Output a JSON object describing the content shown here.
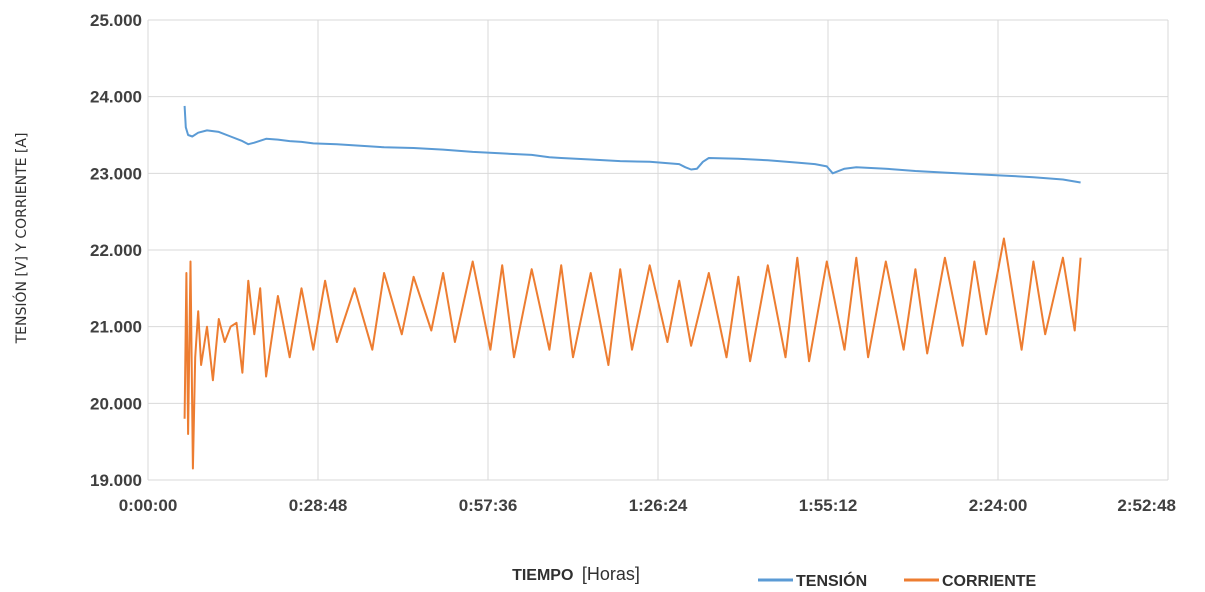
{
  "chart_data": {
    "type": "line",
    "title": "",
    "ylabel": "TENSIÓN [V] Y CORRIENTE [A]",
    "xlabel_bold": "TIEMPO",
    "xlabel_unit": "[Horas]",
    "ylim": [
      19,
      25
    ],
    "y_ticks": [
      "19.000",
      "20.000",
      "21.000",
      "22.000",
      "23.000",
      "24.000",
      "25.000"
    ],
    "xlim_minutes": [
      0,
      172.8
    ],
    "x_ticks": [
      "0:00:00",
      "0:28:48",
      "0:57:36",
      "1:26:24",
      "1:55:12",
      "2:24:00",
      "2:52:48"
    ],
    "grid": true,
    "legend_position": "bottom-right",
    "series": [
      {
        "name": "TENSIÓN",
        "color": "#5B9BD5",
        "x_minutes": [
          6.2,
          6.4,
          6.8,
          7.5,
          8.5,
          10,
          12,
          14,
          16,
          17,
          18,
          20,
          22,
          24,
          26,
          28,
          32,
          36,
          40,
          45,
          50,
          55,
          60,
          65,
          68,
          70,
          75,
          80,
          85,
          90,
          91,
          92,
          93,
          94,
          95,
          100,
          105,
          110,
          113,
          115,
          116,
          118,
          120,
          125,
          130,
          135,
          140,
          145,
          150,
          155,
          158
        ],
        "values": [
          23.88,
          23.6,
          23.5,
          23.48,
          23.53,
          23.56,
          23.54,
          23.48,
          23.42,
          23.38,
          23.4,
          23.45,
          23.44,
          23.42,
          23.41,
          23.39,
          23.38,
          23.36,
          23.34,
          23.33,
          23.31,
          23.28,
          23.26,
          23.24,
          23.21,
          23.2,
          23.18,
          23.16,
          23.15,
          23.12,
          23.08,
          23.05,
          23.06,
          23.15,
          23.2,
          23.19,
          23.17,
          23.14,
          23.12,
          23.09,
          23.0,
          23.06,
          23.08,
          23.06,
          23.03,
          23.01,
          22.99,
          22.97,
          22.95,
          22.92,
          22.88
        ]
      },
      {
        "name": "CORRIENTE",
        "color": "#ED7D31",
        "x_minutes": [
          6.2,
          6.5,
          6.8,
          7.2,
          7.6,
          8.0,
          8.5,
          9,
          10,
          11,
          12,
          13,
          14,
          15,
          16,
          17,
          18,
          19,
          20,
          22,
          24,
          26,
          28,
          30,
          32,
          35,
          38,
          40,
          43,
          45,
          48,
          50,
          52,
          55,
          58,
          60,
          62,
          65,
          68,
          70,
          72,
          75,
          78,
          80,
          82,
          85,
          88,
          90,
          92,
          95,
          98,
          100,
          102,
          105,
          108,
          110,
          112,
          115,
          118,
          120,
          122,
          125,
          128,
          130,
          132,
          135,
          138,
          140,
          142,
          145,
          148,
          150,
          152,
          155,
          157,
          158
        ],
        "values": [
          19.8,
          21.7,
          19.6,
          21.85,
          19.15,
          20.6,
          21.2,
          20.5,
          21.0,
          20.3,
          21.1,
          20.8,
          21.0,
          21.05,
          20.4,
          21.6,
          20.9,
          21.5,
          20.35,
          21.4,
          20.6,
          21.5,
          20.7,
          21.6,
          20.8,
          21.5,
          20.7,
          21.7,
          20.9,
          21.65,
          20.95,
          21.7,
          20.8,
          21.85,
          20.7,
          21.8,
          20.6,
          21.75,
          20.7,
          21.8,
          20.6,
          21.7,
          20.5,
          21.75,
          20.7,
          21.8,
          20.8,
          21.6,
          20.75,
          21.7,
          20.6,
          21.65,
          20.55,
          21.8,
          20.6,
          21.9,
          20.55,
          21.85,
          20.7,
          21.9,
          20.6,
          21.85,
          20.7,
          21.75,
          20.65,
          21.9,
          20.75,
          21.85,
          20.9,
          22.15,
          20.7,
          21.85,
          20.9,
          21.9,
          20.95,
          21.9
        ]
      }
    ]
  }
}
